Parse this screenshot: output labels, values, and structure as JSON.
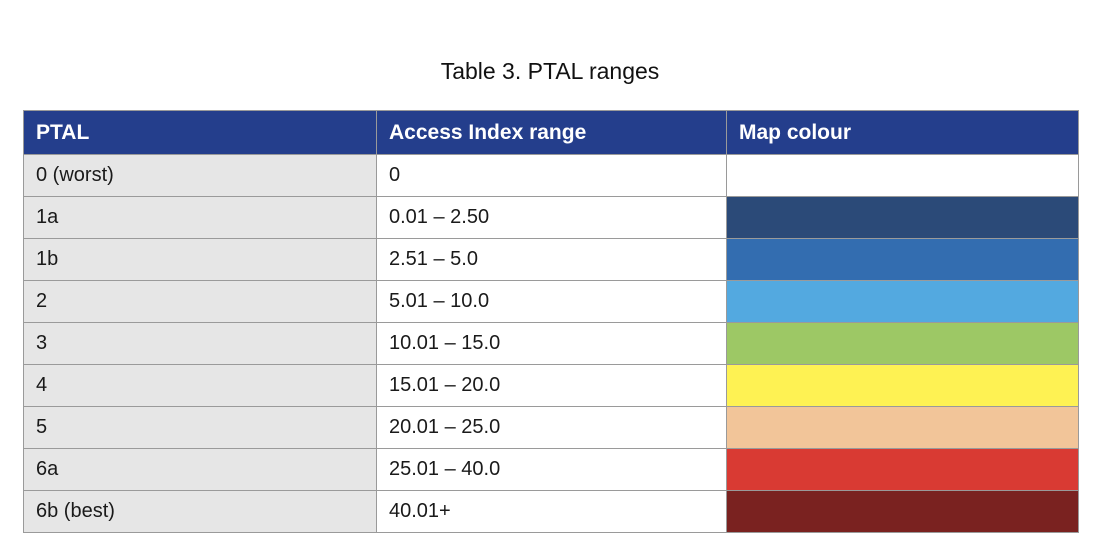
{
  "caption": "Table 3.  PTAL ranges",
  "table": {
    "headers": [
      "PTAL",
      "Access Index range",
      "Map colour"
    ],
    "rows": [
      {
        "ptal": "0 (worst)",
        "range": "0",
        "colour": "#ffffff"
      },
      {
        "ptal": "1a",
        "range": "0.01 – 2.50",
        "colour": "#2b4a78"
      },
      {
        "ptal": "1b",
        "range": "2.51 – 5.0",
        "colour": "#336db0"
      },
      {
        "ptal": "2",
        "range": "5.01 – 10.0",
        "colour": "#53a9e0"
      },
      {
        "ptal": "3",
        "range": "10.01 – 15.0",
        "colour": "#9dc865"
      },
      {
        "ptal": "4",
        "range": "15.01 – 20.0",
        "colour": "#fef253"
      },
      {
        "ptal": "5",
        "range": "20.01 – 25.0",
        "colour": "#f2c599"
      },
      {
        "ptal": "6a",
        "range": "25.01 – 40.0",
        "colour": "#d93a33"
      },
      {
        "ptal": "6b (best)",
        "range": "40.01+",
        "colour": "#7a2220"
      }
    ]
  }
}
